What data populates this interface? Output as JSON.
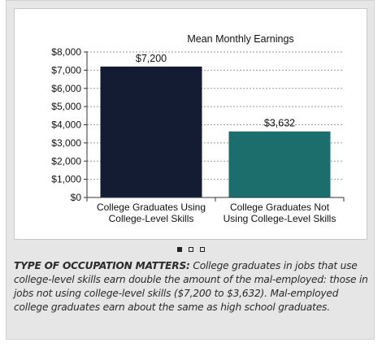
{
  "chart_data": {
    "type": "bar",
    "title": "Mean Monthly Earnings",
    "categories": [
      [
        "College Graduates Using",
        "College-Level Skills"
      ],
      [
        "College Graduates Not",
        "Using College-Level Skills"
      ]
    ],
    "values": [
      7200,
      3632
    ],
    "data_labels": [
      "$7,200",
      "$3,632"
    ],
    "bar_colors": [
      "#131c33",
      "#1b6e6c"
    ],
    "ylim": [
      0,
      8000
    ],
    "yticks": [
      0,
      1000,
      2000,
      3000,
      4000,
      5000,
      6000,
      7000,
      8000
    ],
    "ytick_labels": [
      "$0",
      "$1,000",
      "$2,000",
      "$3,000",
      "$4,000",
      "$5,000",
      "$6,000",
      "$7,000",
      "$8,000"
    ],
    "grid": true,
    "xlabel": "",
    "ylabel": ""
  },
  "pager": {
    "count": 3,
    "active": 0
  },
  "caption": {
    "heading": "TYPE OF OCCUPATION MATTERS:",
    "text": "College graduates in jobs that use college-level skills earn double the amount of the mal-employed: those in jobs not using college-level skills ($7,200 to $3,632). Mal-employed college graduates earn about the same as high school graduates."
  }
}
